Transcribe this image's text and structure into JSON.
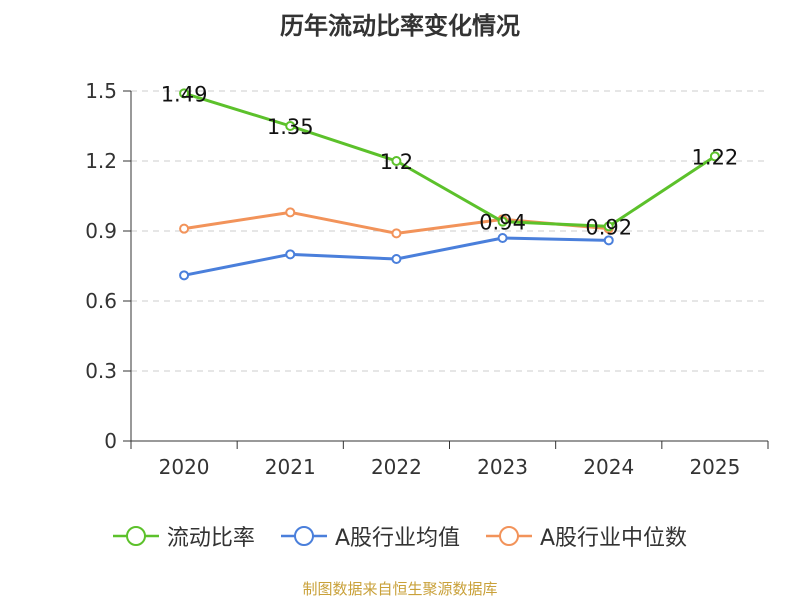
{
  "title": "历年流动比率变化情况",
  "footer": "制图数据来自恒生聚源数据库",
  "chart_data": {
    "type": "line",
    "title": "历年流动比率变化情况",
    "categories": [
      "2020",
      "2021",
      "2022",
      "2023",
      "2024",
      "2025"
    ],
    "ylim": [
      0,
      1.5
    ],
    "yticks": [
      "0",
      "0.3",
      "0.6",
      "0.9",
      "1.2",
      "1.5"
    ],
    "ytick_values": [
      0,
      0.3,
      0.6,
      0.9,
      1.2,
      1.5
    ],
    "grid": true,
    "legend_position": "bottom",
    "series": [
      {
        "name": "流动比率",
        "color": "#5cc12b",
        "values": [
          1.49,
          1.35,
          1.2,
          0.94,
          0.92,
          1.22
        ],
        "labels": [
          "1.49",
          "1.35",
          "1.2",
          "0.94",
          "0.92",
          "1.22"
        ]
      },
      {
        "name": "A股行业均值",
        "color": "#4a7fdb",
        "values": [
          0.71,
          0.8,
          0.78,
          0.87,
          0.86,
          null
        ]
      },
      {
        "name": "A股行业中位数",
        "color": "#f2935a",
        "values": [
          0.91,
          0.98,
          0.89,
          0.95,
          0.91,
          null
        ]
      }
    ]
  }
}
